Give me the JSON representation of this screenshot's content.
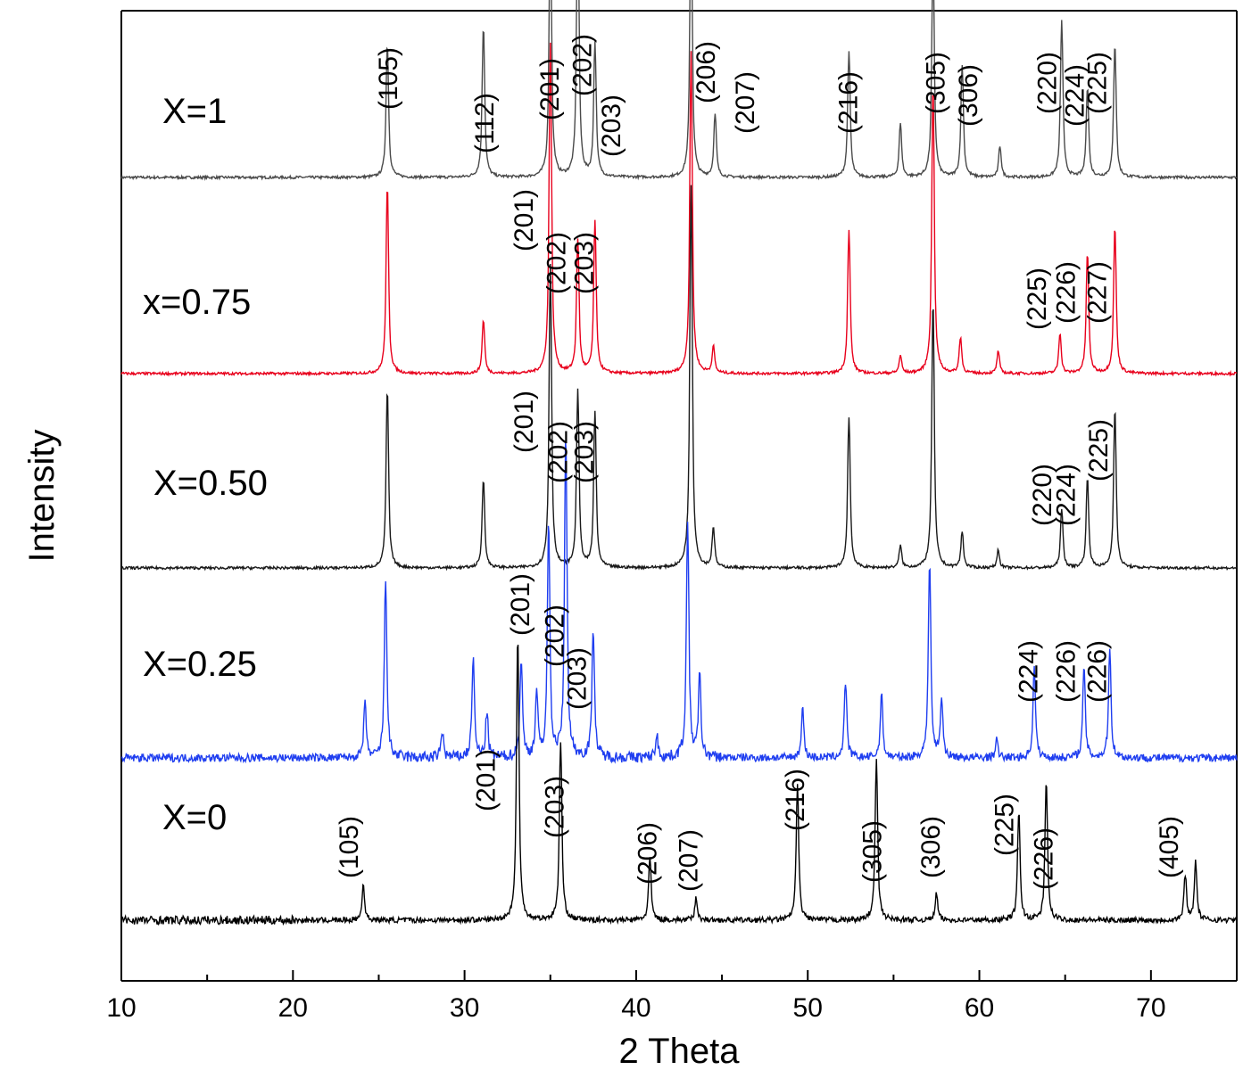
{
  "chart_data": {
    "type": "line",
    "xlabel": "2 Theta",
    "ylabel": "Intensity",
    "xlim": [
      10,
      75
    ],
    "xticks": [
      10,
      20,
      30,
      40,
      50,
      60,
      70
    ],
    "grid": false,
    "series": [
      {
        "name": "X=1",
        "color": "#4a4a4a",
        "peaks": [
          [
            25.5,
            30
          ],
          [
            31.1,
            34
          ],
          [
            35.0,
            58
          ],
          [
            36.6,
            62
          ],
          [
            37.6,
            30
          ],
          [
            43.2,
            60
          ],
          [
            44.6,
            14
          ],
          [
            52.4,
            28
          ],
          [
            55.4,
            12
          ],
          [
            57.3,
            50
          ],
          [
            59.0,
            25
          ],
          [
            61.2,
            7
          ],
          [
            64.8,
            35
          ],
          [
            66.3,
            20
          ],
          [
            67.9,
            30
          ]
        ],
        "labels": [
          {
            "text": "(105)",
            "x": 25.5
          },
          {
            "text": "(112)",
            "x": 31.1
          },
          {
            "text": "(201)",
            "x": 34.9
          },
          {
            "text": "(202)",
            "x": 36.8
          },
          {
            "text": "(203)",
            "x": 38.5
          },
          {
            "text": "(206)",
            "x": 44.0
          },
          {
            "text": "(207)",
            "x": 46.3
          },
          {
            "text": "(216)",
            "x": 52.3
          },
          {
            "text": "(305)",
            "x": 57.4
          },
          {
            "text": "(306)",
            "x": 59.3
          },
          {
            "text": "(220)",
            "x": 63.9
          },
          {
            "text": "(224)",
            "x": 65.5
          },
          {
            "text": "(225)",
            "x": 66.8
          }
        ]
      },
      {
        "name": "x=0.75",
        "color": "#e8001c",
        "peaks": [
          [
            25.5,
            42
          ],
          [
            31.1,
            12
          ],
          [
            35.0,
            74
          ],
          [
            36.6,
            30
          ],
          [
            37.6,
            34
          ],
          [
            43.2,
            72
          ],
          [
            44.5,
            6
          ],
          [
            52.4,
            32
          ],
          [
            55.4,
            4
          ],
          [
            57.3,
            65
          ],
          [
            58.9,
            8
          ],
          [
            61.1,
            5
          ],
          [
            64.7,
            9
          ],
          [
            66.3,
            27
          ],
          [
            67.9,
            33
          ]
        ],
        "labels": [
          {
            "text": "(201)",
            "x": 33.4
          },
          {
            "text": "(202)",
            "x": 35.3
          },
          {
            "text": "(203)",
            "x": 36.9
          },
          {
            "text": "(225)",
            "x": 63.3
          },
          {
            "text": "(226)",
            "x": 65.0
          },
          {
            "text": "(227)",
            "x": 66.8
          }
        ]
      },
      {
        "name": "X=0.50",
        "color": "#1a1a1a",
        "peaks": [
          [
            25.5,
            40
          ],
          [
            31.1,
            20
          ],
          [
            35.0,
            68
          ],
          [
            36.6,
            40
          ],
          [
            37.6,
            35
          ],
          [
            43.2,
            86
          ],
          [
            44.5,
            9
          ],
          [
            52.4,
            34
          ],
          [
            55.4,
            5
          ],
          [
            57.3,
            60
          ],
          [
            59.0,
            8
          ],
          [
            61.1,
            4
          ],
          [
            64.8,
            13
          ],
          [
            66.3,
            20
          ],
          [
            67.9,
            36
          ]
        ],
        "labels": [
          {
            "text": "(201)",
            "x": 33.4
          },
          {
            "text": "(202)",
            "x": 35.4
          },
          {
            "text": "(203)",
            "x": 36.9
          },
          {
            "text": "(220)",
            "x": 63.6
          },
          {
            "text": "(224)",
            "x": 65.0
          },
          {
            "text": "(225)",
            "x": 66.9
          }
        ]
      },
      {
        "name": "X=0.25",
        "color": "#1f3ef0",
        "peaks": [
          [
            24.2,
            12
          ],
          [
            25.4,
            40
          ],
          [
            28.7,
            6
          ],
          [
            30.5,
            22
          ],
          [
            31.3,
            10
          ],
          [
            33.3,
            22
          ],
          [
            34.2,
            14
          ],
          [
            34.9,
            52
          ],
          [
            35.9,
            72
          ],
          [
            37.5,
            29
          ],
          [
            41.2,
            5
          ],
          [
            43.0,
            52
          ],
          [
            43.7,
            18
          ],
          [
            49.7,
            11
          ],
          [
            52.2,
            17
          ],
          [
            54.3,
            14
          ],
          [
            57.1,
            44
          ],
          [
            57.8,
            13
          ],
          [
            61.0,
            4
          ],
          [
            63.2,
            20
          ],
          [
            66.1,
            20
          ],
          [
            67.6,
            24
          ]
        ],
        "labels": [
          {
            "text": "(201)",
            "x": 33.2
          },
          {
            "text": "(202)",
            "x": 35.2
          },
          {
            "text": "(203)",
            "x": 36.5
          },
          {
            "text": "(224)",
            "x": 62.8
          },
          {
            "text": "(226)",
            "x": 65.0
          },
          {
            "text": "(226)",
            "x": 66.8
          }
        ]
      },
      {
        "name": "X=0",
        "color": "#000000",
        "peaks": [
          [
            24.1,
            8
          ],
          [
            33.1,
            64
          ],
          [
            35.6,
            40
          ],
          [
            40.8,
            14
          ],
          [
            43.5,
            5
          ],
          [
            49.4,
            30
          ],
          [
            54.0,
            36
          ],
          [
            57.5,
            6
          ],
          [
            62.3,
            24
          ],
          [
            63.9,
            31
          ],
          [
            72.0,
            10
          ],
          [
            72.6,
            13
          ]
        ],
        "labels": [
          {
            "text": "(105)",
            "x": 23.2
          },
          {
            "text": "(201)",
            "x": 31.2
          },
          {
            "text": "(203)",
            "x": 35.2
          },
          {
            "text": "(206)",
            "x": 40.6
          },
          {
            "text": "(207)",
            "x": 43.0
          },
          {
            "text": "(216)",
            "x": 49.2
          },
          {
            "text": "(305)",
            "x": 53.7
          },
          {
            "text": "(306)",
            "x": 57.1
          },
          {
            "text": "(225)",
            "x": 61.4
          },
          {
            "text": "(226)",
            "x": 63.7
          },
          {
            "text": "(405)",
            "x": 71.0
          }
        ]
      }
    ]
  }
}
